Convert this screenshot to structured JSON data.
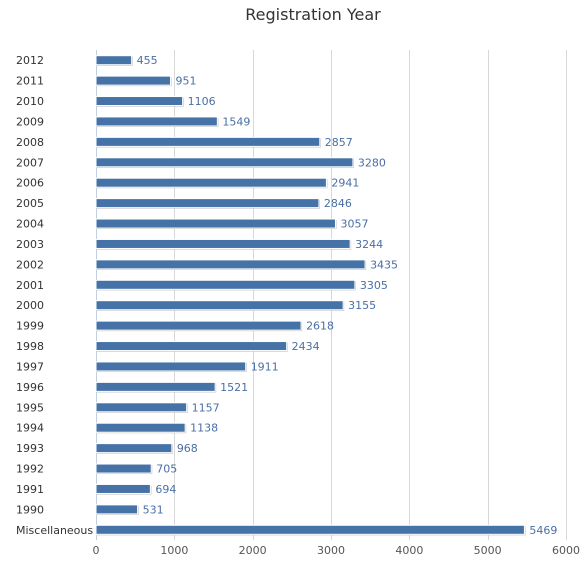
{
  "chart_data": {
    "type": "bar",
    "orientation": "horizontal",
    "title": "Registration Year",
    "xlabel": "",
    "ylabel": "",
    "categories": [
      "2012",
      "2011",
      "2010",
      "2009",
      "2008",
      "2007",
      "2006",
      "2005",
      "2004",
      "2003",
      "2002",
      "2001",
      "2000",
      "1999",
      "1998",
      "1997",
      "1996",
      "1995",
      "1994",
      "1993",
      "1992",
      "1991",
      "1990",
      "Miscellaneous"
    ],
    "values": [
      455,
      951,
      1106,
      1549,
      2857,
      3280,
      2941,
      2846,
      3057,
      3244,
      3435,
      3305,
      3155,
      2618,
      2434,
      1911,
      1521,
      1157,
      1138,
      968,
      705,
      694,
      531,
      5469
    ],
    "xlim": [
      0,
      6000
    ],
    "xticks": [
      0,
      1000,
      2000,
      3000,
      4000,
      5000,
      6000
    ],
    "grid": true,
    "legend": "none",
    "bar_color": "#4572a7",
    "data_labels": true
  }
}
